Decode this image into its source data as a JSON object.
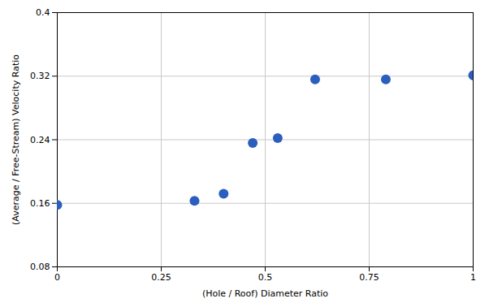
{
  "chart_data": {
    "type": "scatter",
    "xlabel": "(Hole / Roof) Diameter Ratio",
    "ylabel": "(Average / Free-Stream) Velocity Ratio",
    "x": [
      0.0,
      0.33,
      0.4,
      0.47,
      0.53,
      0.62,
      0.79,
      1.0
    ],
    "values": [
      0.158,
      0.163,
      0.172,
      0.236,
      0.242,
      0.316,
      0.316,
      0.321
    ],
    "color": "#2B5EBD",
    "xlim": [
      0.0,
      1.0
    ],
    "ylim": [
      0.08,
      0.4
    ],
    "xticks": [
      0,
      0.25,
      0.5,
      0.75,
      1
    ],
    "yticks": [
      0.08,
      0.16,
      0.24,
      0.32,
      0.4
    ],
    "grid": true
  }
}
